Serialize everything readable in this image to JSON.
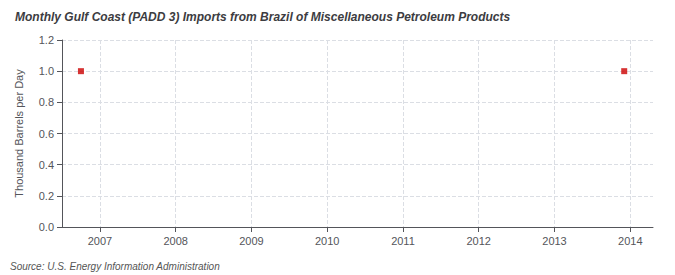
{
  "chart_data": {
    "type": "scatter",
    "title": "Monthly Gulf Coast (PADD 3) Imports from Brazil of Miscellaneous Petroleum Products",
    "ylabel": "Thousand Barrels per Day",
    "annotations": [
      "Source: U.S. Energy Information Administration"
    ],
    "x": [
      2006.75,
      2013.92
    ],
    "values": [
      1.0,
      1.0
    ],
    "color": "#CC0000",
    "marker": "square",
    "xlim": [
      2006.5,
      2014.3
    ],
    "xticks": [
      2007,
      2008,
      2009,
      2010,
      2011,
      2012,
      2013,
      2014
    ],
    "ylim": [
      0.0,
      1.2
    ],
    "yticks": [
      {
        "value": 0.0,
        "label": "0.0"
      },
      0.2,
      0.4,
      0.6,
      0.8,
      {
        "value": 1.0,
        "label": "1.0"
      },
      1.2
    ],
    "grid": true
  }
}
